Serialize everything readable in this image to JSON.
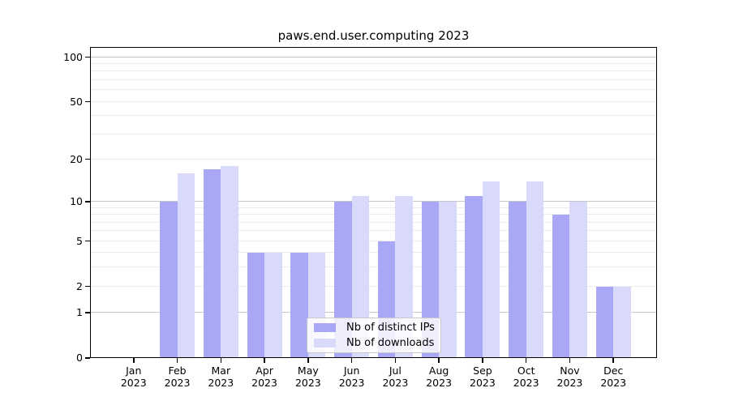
{
  "chart_data": {
    "type": "bar",
    "title": "paws.end.user.computing 2023",
    "categories": [
      "Jan",
      "Feb",
      "Mar",
      "Apr",
      "May",
      "Jun",
      "Jul",
      "Aug",
      "Sep",
      "Oct",
      "Nov",
      "Dec"
    ],
    "tick_year": "2023",
    "series": [
      {
        "name": "Nb of distinct IPs",
        "color": "#a8a8f6",
        "values": [
          0,
          10,
          17,
          4,
          4,
          10,
          5,
          10,
          11,
          10,
          8,
          2
        ]
      },
      {
        "name": "Nb of downloads",
        "color": "#d9d9f9",
        "values": [
          0,
          16,
          18,
          4,
          4,
          11,
          11,
          10,
          14,
          14,
          10,
          2
        ]
      }
    ],
    "yscale": "log1p",
    "yticks": [
      0,
      1,
      2,
      5,
      10,
      20,
      50,
      100
    ],
    "major_gridlines": [
      1,
      10,
      100
    ],
    "minor_gridlines": [
      2,
      3,
      4,
      5,
      6,
      7,
      8,
      9,
      20,
      30,
      40,
      50,
      60,
      70,
      80,
      90
    ],
    "ylim": [
      0,
      117
    ],
    "grid": true,
    "legend_position": "lower center",
    "colors": {
      "major_grid": "#c6c6c6",
      "minor_grid": "#ededed",
      "spine": "#000000",
      "text": "#000000"
    }
  }
}
